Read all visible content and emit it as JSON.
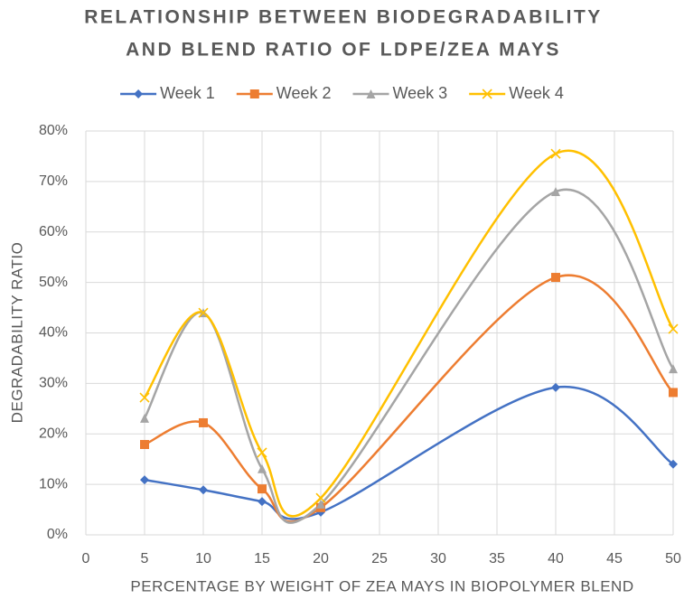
{
  "chart_data": {
    "type": "line",
    "title": [
      "RELATIONSHIP BETWEEN BIODEGRADABILITY",
      "AND BLEND RATIO OF LDPE/ZEA MAYS"
    ],
    "x_label": "PERCENTAGE BY WEIGHT OF ZEA MAYS IN BIOPOLYMER BLEND",
    "y_label": "DEGRADABILITY RATIO",
    "x": [
      5,
      10,
      15,
      20,
      40,
      50
    ],
    "series": [
      {
        "name": "Week 1",
        "color": "#4472c4",
        "marker": "diamond",
        "values": [
          10.9,
          8.9,
          6.6,
          4.5,
          29.2,
          14.0
        ]
      },
      {
        "name": "Week 2",
        "color": "#ed7d31",
        "marker": "square",
        "values": [
          17.9,
          22.2,
          9.1,
          5.4,
          51.0,
          28.2
        ]
      },
      {
        "name": "Week 3",
        "color": "#a5a5a5",
        "marker": "triangle",
        "values": [
          23.1,
          44.0,
          13.1,
          6.1,
          68.0,
          32.9
        ]
      },
      {
        "name": "Week 4",
        "color": "#ffc000",
        "marker": "x",
        "values": [
          27.2,
          44.0,
          16.3,
          7.3,
          75.5,
          40.8
        ]
      }
    ],
    "xlim": [
      0,
      50
    ],
    "xticks": [
      0,
      5,
      10,
      15,
      20,
      25,
      30,
      35,
      40,
      45,
      50
    ],
    "ylim": [
      0,
      80
    ],
    "yticks": [
      {
        "value": 0,
        "label": "0%"
      },
      {
        "value": 10,
        "label": "10%"
      },
      {
        "value": 20,
        "label": "20%"
      },
      {
        "value": 30,
        "label": "30%"
      },
      {
        "value": 40,
        "label": "40%"
      },
      {
        "value": 50,
        "label": "50%"
      },
      {
        "value": 60,
        "label": "60%"
      },
      {
        "value": 70,
        "label": "70%"
      },
      {
        "value": 80,
        "label": "80%"
      }
    ],
    "grid": true,
    "smooth": true,
    "legend": "top"
  }
}
